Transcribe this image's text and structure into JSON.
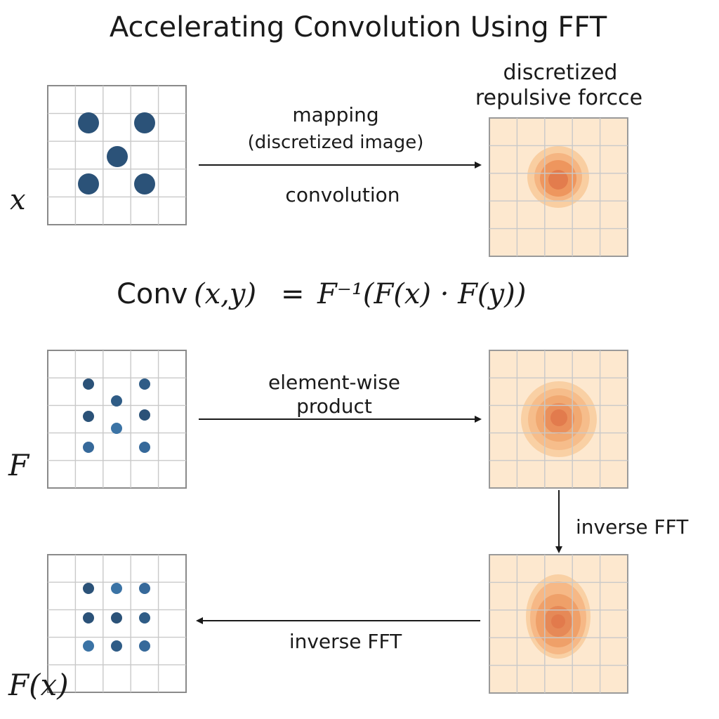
{
  "title": "Accelerating Convolution Using FFT",
  "colors": {
    "dot_dark": "#2b5278",
    "dot_light": "#3b73a5",
    "field_bg": "#fde8cf",
    "field_core": "#e0784a",
    "field_mid": "#f0a46c",
    "field_outer": "#f8c999"
  },
  "labels": {
    "force_title_line1": "discretized",
    "force_title_line2": "repulsive forcce",
    "mapping_line1": "mapping",
    "mapping_line2": "(discretized image)",
    "convolution": "convolution",
    "element_wise_line1": "element-wise",
    "element_wise_line2": "product",
    "inverse_fft_right": "inverse FFT",
    "inverse_fft_bottom": "inverse FFT"
  },
  "symbols": {
    "x_label": "x",
    "F_label": "F",
    "Fx_label": "F(x)"
  },
  "equation": {
    "lhs": "Conv",
    "args": "(x,y)",
    "equals": "=",
    "rhs": "F⁻¹(F(x) · F(y))"
  }
}
